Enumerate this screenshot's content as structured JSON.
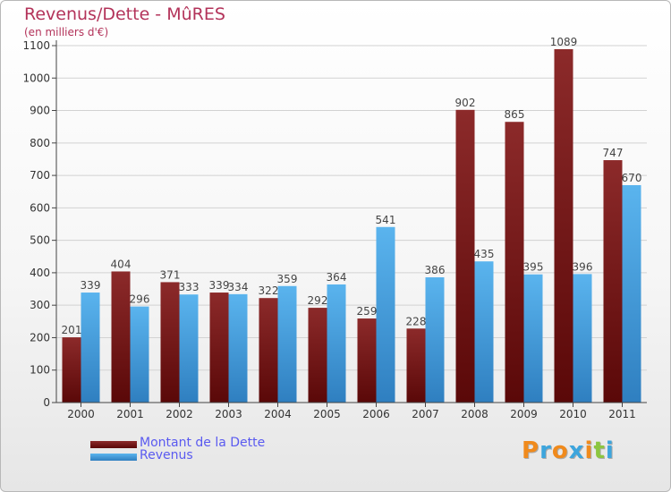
{
  "chart_data": {
    "type": "bar",
    "title": "Revenus/Dette - MûRES",
    "subtitle": "(en milliers d'€)",
    "categories": [
      "2000",
      "2001",
      "2002",
      "2003",
      "2004",
      "2005",
      "2006",
      "2007",
      "2008",
      "2009",
      "2010",
      "2011"
    ],
    "series": [
      {
        "name": "Montant de la Dette",
        "color": "#7a1a1a",
        "values": [
          201,
          404,
          371,
          339,
          322,
          292,
          259,
          228,
          902,
          865,
          1089,
          747
        ]
      },
      {
        "name": "Revenus",
        "color": "#4aa3e0",
        "values": [
          339,
          296,
          333,
          334,
          359,
          364,
          541,
          386,
          435,
          395,
          396,
          670
        ]
      }
    ],
    "yticks": [
      0,
      100,
      200,
      300,
      400,
      500,
      600,
      700,
      800,
      900,
      1000,
      1100
    ],
    "ylim": [
      0,
      1100
    ],
    "grid": "horizontal",
    "legend_position": "bottom-left"
  },
  "logo": {
    "letters": [
      "P",
      "r",
      "o",
      "x",
      "i",
      "t",
      "i"
    ],
    "colors": [
      "#f08a1c",
      "#3da5dd",
      "#f08a1c",
      "#3da5dd",
      "#f08a1c",
      "#8cc63f",
      "#3da5dd"
    ]
  }
}
